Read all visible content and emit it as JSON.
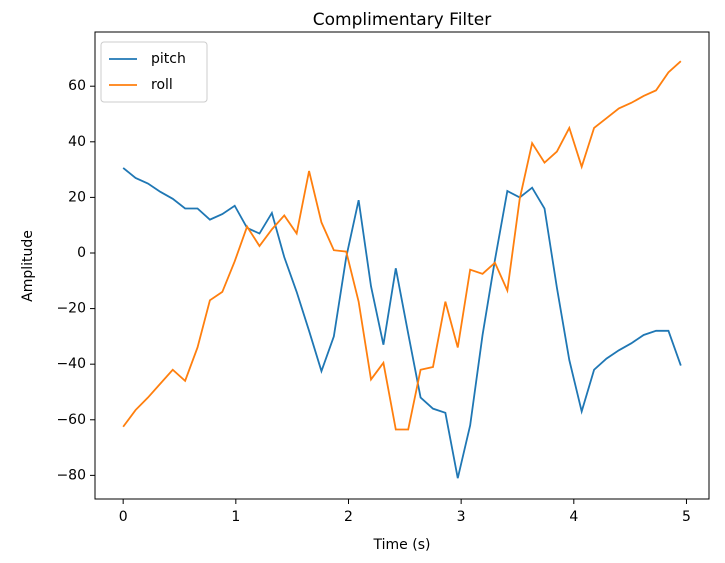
{
  "chart_data": {
    "type": "line",
    "title": "Complimentary Filter",
    "xlabel": "Time (s)",
    "ylabel": "Amplitude",
    "x": [
      0,
      0.11,
      0.22,
      0.33,
      0.44,
      0.55,
      0.66,
      0.77,
      0.88,
      0.99,
      1.1,
      1.21,
      1.32,
      1.43,
      1.54,
      1.65,
      1.76,
      1.87,
      1.98,
      2.09,
      2.2,
      2.31,
      2.42,
      2.53,
      2.64,
      2.75,
      2.86,
      2.97,
      3.08,
      3.19,
      3.3,
      3.41,
      3.52,
      3.63,
      3.74,
      3.85,
      3.96,
      4.07,
      4.18,
      4.29,
      4.4,
      4.51,
      4.62,
      4.73,
      4.84,
      4.95
    ],
    "series": [
      {
        "name": "pitch",
        "color": "#1f77b4",
        "values": [
          30.6,
          27,
          25,
          22,
          19.5,
          16,
          16,
          12,
          14,
          17,
          9,
          7,
          14.4,
          -1.5,
          -14,
          -28,
          -42.5,
          -30,
          -1.5,
          19,
          -12,
          -33,
          -5.5,
          -29,
          -52,
          -56,
          -57.5,
          -81,
          -62,
          -29.5,
          -2.5,
          22.3,
          20,
          23.5,
          16,
          -12.5,
          -38.5,
          -57,
          -42,
          -38,
          -35,
          -32.5,
          -29.5,
          -28,
          -28,
          -40.5
        ]
      },
      {
        "name": "roll",
        "color": "#ff7f0e",
        "values": [
          -62.5,
          -56.5,
          -52,
          -47,
          -42,
          -46,
          -34,
          -17,
          -14,
          -3,
          9.5,
          2.5,
          8.5,
          13.5,
          7,
          29.5,
          11,
          1,
          0.5,
          -17.5,
          -45.5,
          -39.5,
          -63.5,
          -63.5,
          -42,
          -41,
          -17.5,
          -34,
          -6,
          -7.5,
          -3.5,
          -13.5,
          19.5,
          39.5,
          32.5,
          36.5,
          45,
          31,
          45,
          48.5,
          52,
          54,
          56.5,
          58.5,
          65,
          69
        ]
      }
    ],
    "xlim": [
      -0.25,
      5.2
    ],
    "ylim": [
      -88.5,
      79.5
    ],
    "xticks": [
      0,
      1,
      2,
      3,
      4,
      5
    ],
    "yticks": [
      {
        "value": -80,
        "label": "−80"
      },
      {
        "value": -60,
        "label": "−60"
      },
      {
        "value": -40,
        "label": "−40"
      },
      {
        "value": -20,
        "label": "−20"
      },
      0,
      20,
      40,
      60
    ],
    "legend": "upper left"
  }
}
